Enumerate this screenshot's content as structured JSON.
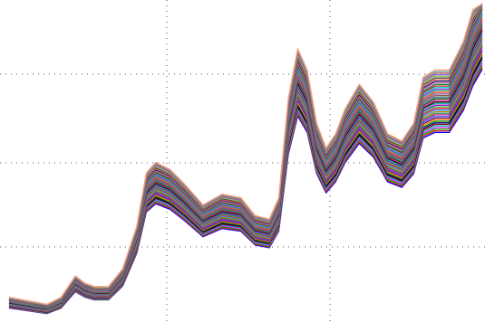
{
  "chart_data": {
    "type": "line",
    "title": "",
    "xlabel": "",
    "ylabel": "",
    "grid": true,
    "grid_style": "dotted",
    "legend": "none",
    "description_note": "",
    "x": [
      0,
      0.04,
      0.08,
      0.11,
      0.14,
      0.16,
      0.18,
      0.21,
      0.24,
      0.27,
      0.29,
      0.31,
      0.34,
      0.37,
      0.41,
      0.45,
      0.49,
      0.52,
      0.55,
      0.57,
      0.59,
      0.61,
      0.63,
      0.65,
      0.67,
      0.69,
      0.71,
      0.74,
      0.77,
      0.8,
      0.83,
      0.855,
      0.875,
      0.9,
      0.93,
      0.96,
      0.98,
      1.0
    ],
    "base_profile": [
      0.06,
      0.05,
      0.04,
      0.06,
      0.12,
      0.1,
      0.09,
      0.09,
      0.14,
      0.26,
      0.41,
      0.44,
      0.42,
      0.38,
      0.32,
      0.35,
      0.34,
      0.29,
      0.28,
      0.34,
      0.62,
      0.76,
      0.7,
      0.55,
      0.48,
      0.52,
      0.59,
      0.66,
      0.61,
      0.52,
      0.5,
      0.55,
      0.68,
      0.7,
      0.7,
      0.78,
      0.87,
      0.93
    ],
    "series_count": 40,
    "series_colors": [
      "#0000ff",
      "#e01b1b",
      "#00b000",
      "#ff00ff",
      "#00c8c8",
      "#8b0000",
      "#000080",
      "#008000",
      "#ff8c00",
      "#800080",
      "#4169e1",
      "#c71585",
      "#2e8b57",
      "#b8860b",
      "#1e90ff",
      "#dc143c",
      "#32cd32",
      "#9400d3",
      "#20b2aa",
      "#000000",
      "#ff1493",
      "#006400",
      "#4682b4",
      "#a0522d",
      "#6a5acd",
      "#ff4500",
      "#3cb371",
      "#8a2be2",
      "#00ced1",
      "#b22222",
      "#228b22",
      "#da70d6",
      "#191970",
      "#ff6347",
      "#2f4f4f",
      "#9acd32",
      "#7b68ee",
      "#cd5c5c",
      "#5f9ea0",
      "#ffa07a"
    ]
  }
}
